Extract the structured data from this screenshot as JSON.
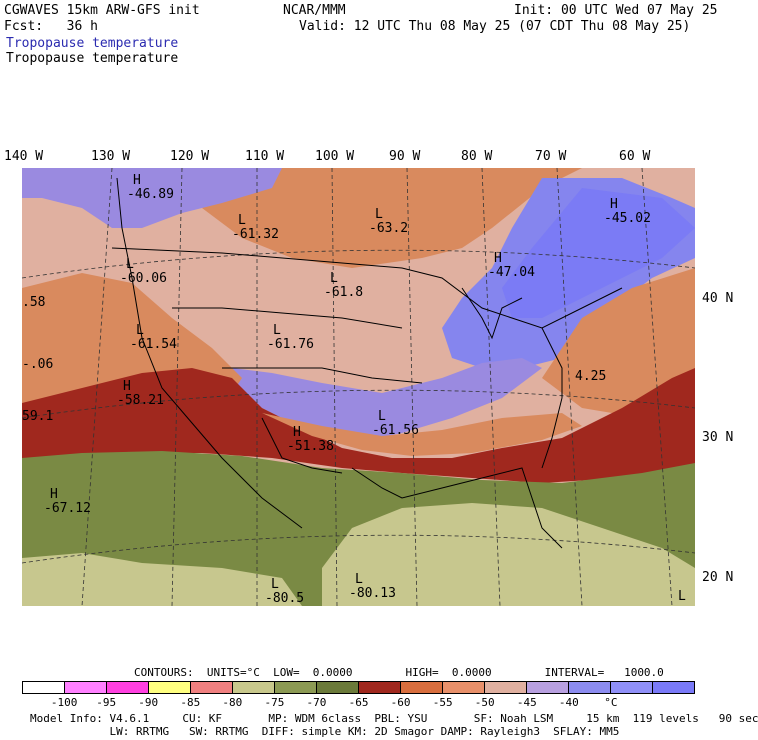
{
  "header": {
    "model": "CGWAVES 15km ARW-GFS init",
    "org": "NCAR/MMM",
    "init": "Init: 00 UTC Wed 07 May 25",
    "fcst": "Fcst:   36 h",
    "valid": "Valid: 12 UTC Thu 08 May 25 (07 CDT Thu 08 May 25)",
    "field1": "Tropopause temperature",
    "field2": "Tropopause temperature"
  },
  "lon_labels": [
    "140 W",
    "130 W",
    "120 W",
    "110 W",
    "100 W",
    "90 W",
    "80 W",
    "70 W",
    "60 W"
  ],
  "lat_labels": [
    "40 N",
    "30 N",
    "20 N"
  ],
  "map_labels": [
    {
      "sym": "H",
      "val": "-46.89"
    },
    {
      "sym": "L",
      "val": "-61.32"
    },
    {
      "sym": "L",
      "val": "-63.2"
    },
    {
      "sym": "H",
      "val": "-45.02"
    },
    {
      "sym": "L",
      "val": "-60.06"
    },
    {
      "sym": "L",
      "val": "-61.8"
    },
    {
      "sym": "H",
      "val": "-47.04"
    },
    {
      "sym": "L",
      "val": "-61.54"
    },
    {
      "sym": "L",
      "val": "-61.76"
    },
    {
      "sym": "H",
      "val": "-58.21"
    },
    {
      "sym": "L",
      "val": "-61.56"
    },
    {
      "sym": "H",
      "val": "-51.38"
    },
    {
      "sym": "H",
      "val": "-67.12"
    },
    {
      "sym": "L",
      "val": "-80.5"
    },
    {
      "sym": "L",
      "val": "-80.13"
    },
    {
      "sym": "",
      "val": ".58"
    },
    {
      "sym": "",
      "val": "-.06"
    },
    {
      "sym": "",
      "val": "59.1"
    },
    {
      "sym": "",
      "val": "4.25"
    },
    {
      "sym": "L",
      "val": ""
    }
  ],
  "contours": {
    "text": "CONTOURS:  UNITS=°C  LOW=  0.0000        HIGH=  0.0000        INTERVAL=   1000.0"
  },
  "colorbar": {
    "colors": [
      "#ffffff",
      "#ff80ff",
      "#ff40e0",
      "#ffff80",
      "#f08080",
      "#c8c88c",
      "#8c9a54",
      "#6b7a3a",
      "#a0281e",
      "#d86e3e",
      "#e8906a",
      "#e0b0a0",
      "#b8a0e0",
      "#8c8cf0",
      "#9090f8",
      "#7a7af8"
    ],
    "ticks": [
      "-100",
      "-95",
      "-90",
      "-85",
      "-80",
      "-75",
      "-70",
      "-65",
      "-60",
      "-55",
      "-50",
      "-45",
      "-40",
      "°C"
    ]
  },
  "footer": {
    "line1": "Model Info: V4.6.1     CU: KF       MP: WDM 6class  PBL: YSU       SF: Noah LSM     15 km  119 levels   90 sec",
    "line2": "            LW: RRTMG   SW: RRTMG  DIFF: simple KM: 2D Smagor DAMP: Rayleigh3  SFLAY: MM5"
  }
}
